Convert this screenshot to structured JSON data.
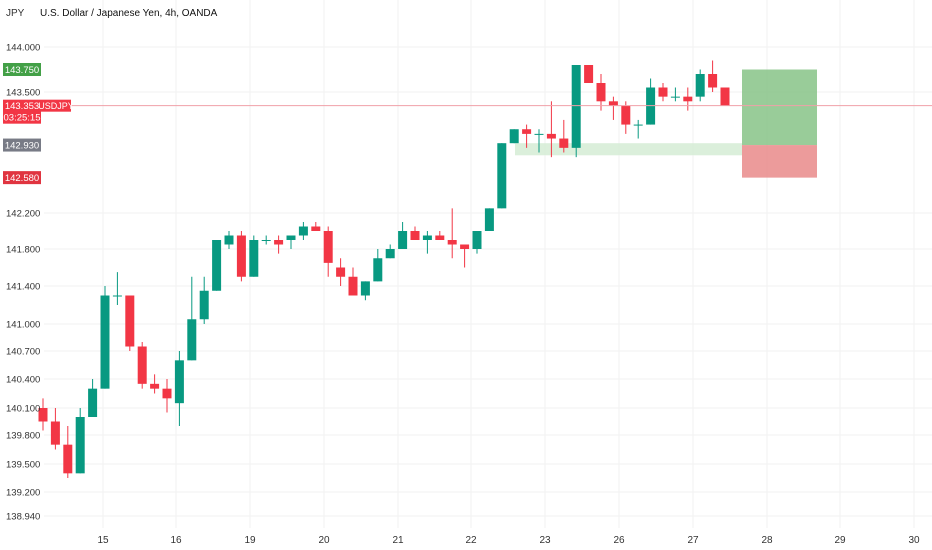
{
  "chart_data": {
    "type": "candlestick",
    "title": "U.S. Dollar / Japanese Yen, 4h, OANDA",
    "currency": "JPY",
    "symbol": "USDJPY",
    "y_ticks": [
      "144.000",
      "143.500",
      "142.200",
      "141.800",
      "141.400",
      "141.000",
      "140.700",
      "140.400",
      "140.100",
      "139.800",
      "139.500",
      "139.200",
      "138.940"
    ],
    "x_ticks": [
      "15",
      "16",
      "19",
      "20",
      "21",
      "22",
      "23",
      "26",
      "27",
      "28",
      "29",
      "30"
    ],
    "ylim": [
      138.85,
      144.35
    ],
    "current_price": {
      "label": "143.353",
      "countdown": "03:25:15",
      "value": 143.353
    },
    "take_profit": {
      "label": "143.750",
      "value": 143.75
    },
    "entry": {
      "label": "142.930",
      "value": 142.93
    },
    "stop_loss": {
      "label": "142.580",
      "value": 142.58
    },
    "demand_zone": {
      "from_date": "22",
      "to_date": "27",
      "price_low": 142.82,
      "price_high": 142.95
    },
    "candles": [
      [
        140.1,
        140.2,
        139.85,
        139.95
      ],
      [
        139.95,
        140.1,
        139.65,
        139.7
      ],
      [
        139.7,
        139.9,
        139.35,
        139.4
      ],
      [
        139.4,
        140.1,
        139.4,
        140.0
      ],
      [
        140.0,
        140.4,
        140.0,
        140.3
      ],
      [
        140.3,
        141.4,
        140.3,
        141.3
      ],
      [
        141.3,
        141.55,
        141.2,
        141.3
      ],
      [
        141.3,
        141.3,
        140.7,
        140.75
      ],
      [
        140.75,
        140.8,
        140.3,
        140.35
      ],
      [
        140.35,
        140.45,
        140.25,
        140.3
      ],
      [
        140.3,
        140.4,
        140.05,
        140.2
      ],
      [
        140.15,
        140.7,
        139.9,
        140.6
      ],
      [
        140.6,
        141.5,
        140.6,
        141.05
      ],
      [
        141.05,
        141.5,
        141.0,
        141.35
      ],
      [
        141.35,
        141.9,
        141.35,
        141.9
      ],
      [
        141.85,
        142.0,
        141.8,
        141.95
      ],
      [
        141.95,
        142.0,
        141.45,
        141.5
      ],
      [
        141.5,
        141.95,
        141.5,
        141.9
      ],
      [
        141.9,
        141.95,
        141.85,
        141.9
      ],
      [
        141.9,
        141.95,
        141.75,
        141.85
      ],
      [
        141.9,
        141.95,
        141.8,
        141.95
      ],
      [
        141.95,
        142.1,
        141.9,
        142.05
      ],
      [
        142.05,
        142.1,
        142.0,
        142.0
      ],
      [
        142.0,
        142.05,
        141.5,
        141.65
      ],
      [
        141.6,
        141.7,
        141.4,
        141.5
      ],
      [
        141.5,
        141.6,
        141.3,
        141.3
      ],
      [
        141.3,
        141.45,
        141.25,
        141.45
      ],
      [
        141.45,
        141.8,
        141.45,
        141.7
      ],
      [
        141.7,
        141.85,
        141.7,
        141.8
      ],
      [
        141.8,
        142.1,
        141.8,
        142.0
      ],
      [
        142.0,
        142.05,
        141.9,
        141.9
      ],
      [
        141.9,
        142.0,
        141.75,
        141.95
      ],
      [
        141.95,
        142.0,
        141.9,
        141.9
      ],
      [
        141.9,
        142.25,
        141.7,
        141.85
      ],
      [
        141.85,
        141.85,
        141.6,
        141.8
      ],
      [
        141.8,
        142.0,
        141.75,
        142.0
      ],
      [
        142.0,
        142.25,
        142.0,
        142.25
      ],
      [
        142.25,
        142.95,
        142.25,
        142.95
      ],
      [
        142.95,
        143.1,
        142.95,
        143.1
      ],
      [
        143.1,
        143.15,
        142.9,
        143.05
      ],
      [
        143.05,
        143.1,
        142.85,
        143.05
      ],
      [
        143.05,
        143.4,
        142.8,
        143.0
      ],
      [
        143.0,
        143.2,
        142.85,
        142.9
      ],
      [
        142.9,
        143.8,
        142.8,
        143.8
      ],
      [
        143.8,
        143.8,
        143.6,
        143.6
      ],
      [
        143.6,
        143.7,
        143.3,
        143.4
      ],
      [
        143.4,
        143.45,
        143.2,
        143.35
      ],
      [
        143.35,
        143.4,
        143.05,
        143.15
      ],
      [
        143.15,
        143.2,
        143.0,
        143.15
      ],
      [
        143.15,
        143.65,
        143.15,
        143.55
      ],
      [
        143.55,
        143.6,
        143.4,
        143.45
      ],
      [
        143.45,
        143.55,
        143.4,
        143.45
      ],
      [
        143.45,
        143.55,
        143.3,
        143.4
      ],
      [
        143.45,
        143.75,
        143.4,
        143.7
      ],
      [
        143.7,
        143.85,
        143.5,
        143.55
      ],
      [
        143.55,
        143.55,
        143.35,
        143.35
      ]
    ]
  }
}
